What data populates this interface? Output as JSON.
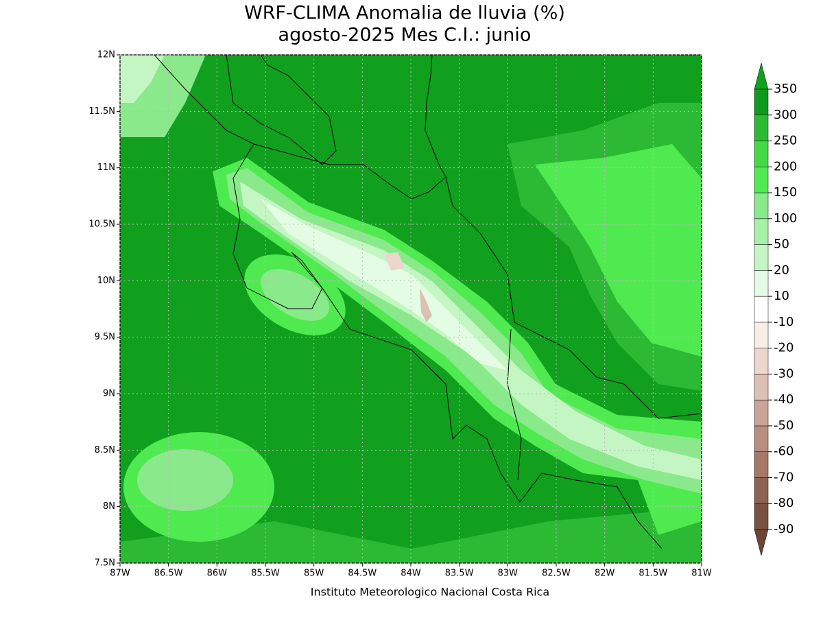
{
  "chart_data": {
    "type": "contour-map",
    "title": "WRF-CLIMA Anomalia de lluvia (%)",
    "subtitle": "agosto-2025 Mes C.I.: junio",
    "caption": "Instituto Meteorologico Nacional Costa Rica",
    "xlim": [
      -87,
      -81
    ],
    "xticks": [
      {
        "value": -87,
        "label": "87W"
      },
      {
        "value": -86.5,
        "label": "86.5W"
      },
      {
        "value": -86,
        "label": "86W"
      },
      {
        "value": -85.5,
        "label": "85.5W"
      },
      {
        "value": -85,
        "label": "85W"
      },
      {
        "value": -84.5,
        "label": "84.5W"
      },
      {
        "value": -84,
        "label": "84W"
      },
      {
        "value": -83.5,
        "label": "83.5W"
      },
      {
        "value": -83,
        "label": "83W"
      },
      {
        "value": -82.5,
        "label": "82.5W"
      },
      {
        "value": -82,
        "label": "82W"
      },
      {
        "value": -81.5,
        "label": "81.5W"
      },
      {
        "value": -81,
        "label": "81W"
      }
    ],
    "ylim": [
      7.5,
      12
    ],
    "yticks": [
      {
        "value": 7.5,
        "label": "7.5N"
      },
      {
        "value": 8,
        "label": "8N"
      },
      {
        "value": 8.5,
        "label": "8.5N"
      },
      {
        "value": 9,
        "label": "9N"
      },
      {
        "value": 9.5,
        "label": "9.5N"
      },
      {
        "value": 10,
        "label": "10N"
      },
      {
        "value": 10.5,
        "label": "10.5N"
      },
      {
        "value": 11,
        "label": "11N"
      },
      {
        "value": 11.5,
        "label": "11.5N"
      },
      {
        "value": 12,
        "label": "12N"
      }
    ],
    "grid": true,
    "colorbar": {
      "levels": [
        -90,
        -80,
        -70,
        -60,
        -50,
        -40,
        -30,
        -20,
        -10,
        10,
        20,
        50,
        100,
        150,
        200,
        250,
        300,
        350
      ],
      "colors": [
        "#6b4636",
        "#7a5243",
        "#8d6353",
        "#a57868",
        "#b78e80",
        "#c9a497",
        "#dcc0b4",
        "#ecd7cc",
        "#f7eee4",
        "#ffffff",
        "#e4fce4",
        "#c4f6c4",
        "#a8f0a8",
        "#8ae98a",
        "#4fea4f",
        "#46d946",
        "#2cba35",
        "#109a1c",
        "#10a01e"
      ]
    }
  }
}
